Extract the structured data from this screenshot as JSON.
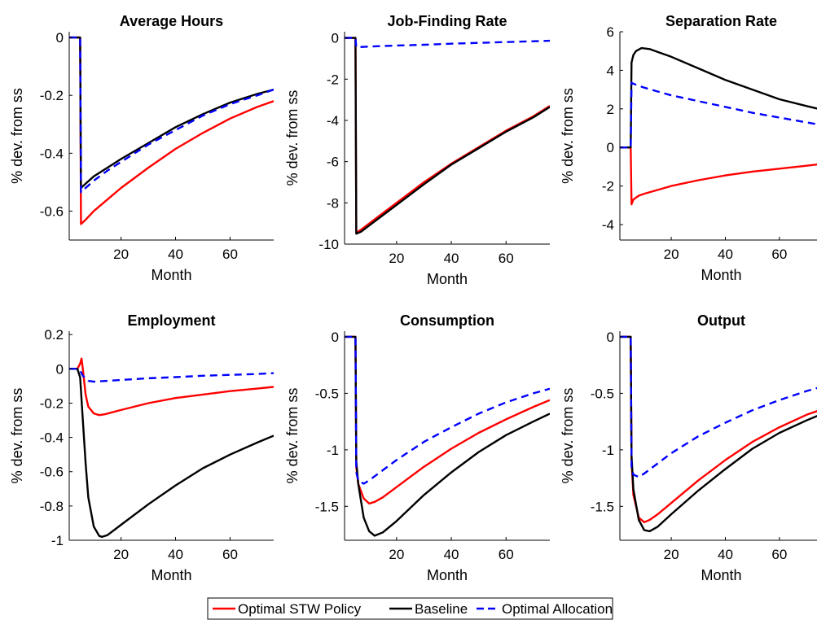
{
  "chart_data": [
    {
      "type": "line",
      "title": "Average Hours",
      "xlabel": "Month",
      "ylabel": "% dev. from ss",
      "xlim": [
        1,
        76
      ],
      "ylim": [
        -0.7,
        0.02
      ],
      "xticks": [
        20,
        40,
        60
      ],
      "yticks": [
        0,
        -0.2,
        -0.4,
        -0.6
      ],
      "yticklabels": [
        "0",
        "-0.2",
        "-0.4",
        "-0.6"
      ],
      "grid": false,
      "series": [
        {
          "name": "Optimal STW Policy",
          "color": "#ff0000",
          "style": "solid",
          "x": [
            1,
            4,
            5,
            5.3,
            7,
            10,
            15,
            20,
            30,
            40,
            50,
            60,
            70,
            76
          ],
          "y": [
            0,
            0,
            0,
            -0.645,
            -0.63,
            -0.6,
            -0.56,
            -0.52,
            -0.45,
            -0.385,
            -0.33,
            -0.28,
            -0.24,
            -0.22
          ]
        },
        {
          "name": "Baseline",
          "color": "#000000",
          "style": "solid",
          "x": [
            1,
            4,
            5,
            5.3,
            7,
            10,
            15,
            20,
            30,
            40,
            50,
            60,
            70,
            76
          ],
          "y": [
            0,
            0,
            0,
            -0.52,
            -0.505,
            -0.48,
            -0.45,
            -0.42,
            -0.365,
            -0.31,
            -0.265,
            -0.225,
            -0.195,
            -0.18
          ]
        },
        {
          "name": "Optimal Allocation",
          "color": "#0000ff",
          "style": "dashed",
          "x": [
            1,
            4,
            5,
            5.3,
            7,
            10,
            15,
            20,
            30,
            40,
            50,
            60,
            70,
            76
          ],
          "y": [
            0,
            0,
            0,
            -0.535,
            -0.52,
            -0.495,
            -0.46,
            -0.43,
            -0.37,
            -0.32,
            -0.27,
            -0.23,
            -0.2,
            -0.18
          ]
        }
      ]
    },
    {
      "type": "line",
      "title": "Job-Finding Rate",
      "xlabel": "Month",
      "ylabel": "% dev. from ss",
      "xlim": [
        1,
        76
      ],
      "ylim": [
        -10,
        0.3
      ],
      "xticks": [
        20,
        40,
        60
      ],
      "yticks": [
        0,
        -2,
        -4,
        -6,
        -8,
        -10
      ],
      "yticklabels": [
        "0",
        "-2",
        "-4",
        "-6",
        "-8",
        "-10"
      ],
      "grid": false,
      "series": [
        {
          "name": "Optimal STW Policy",
          "color": "#ff0000",
          "style": "solid",
          "x": [
            1,
            4,
            5,
            5.3,
            7,
            10,
            15,
            20,
            30,
            40,
            50,
            60,
            70,
            76
          ],
          "y": [
            0,
            0,
            0,
            -9.45,
            -9.3,
            -9.0,
            -8.5,
            -8.0,
            -7.0,
            -6.1,
            -5.3,
            -4.5,
            -3.8,
            -3.3
          ]
        },
        {
          "name": "Baseline",
          "color": "#000000",
          "style": "solid",
          "x": [
            1,
            4,
            5,
            5.3,
            7,
            10,
            15,
            20,
            30,
            40,
            50,
            60,
            70,
            76
          ],
          "y": [
            0,
            0,
            0,
            -9.5,
            -9.4,
            -9.1,
            -8.6,
            -8.1,
            -7.1,
            -6.15,
            -5.35,
            -4.55,
            -3.85,
            -3.35
          ]
        },
        {
          "name": "Optimal Allocation",
          "color": "#0000ff",
          "style": "dashed",
          "x": [
            1,
            4,
            5,
            5.3,
            10,
            20,
            30,
            40,
            50,
            60,
            70,
            76
          ],
          "y": [
            0,
            0,
            0,
            -0.45,
            -0.42,
            -0.37,
            -0.33,
            -0.28,
            -0.24,
            -0.2,
            -0.16,
            -0.14
          ]
        }
      ]
    },
    {
      "type": "line",
      "title": "Separation Rate",
      "xlabel": "Month",
      "ylabel": "% dev. from ss",
      "xlim": [
        1,
        76
      ],
      "ylim": [
        -4.8,
        6
      ],
      "xticks": [
        20,
        40,
        60
      ],
      "yticks": [
        6,
        4,
        2,
        0,
        -2,
        -4
      ],
      "yticklabels": [
        "6",
        "4",
        "2",
        "0",
        "-2",
        "-4"
      ],
      "grid": false,
      "series": [
        {
          "name": "Optimal STW Policy",
          "color": "#ff0000",
          "style": "solid",
          "x": [
            1,
            4,
            5,
            5.3,
            6,
            8,
            10,
            15,
            20,
            30,
            40,
            50,
            60,
            70,
            76
          ],
          "y": [
            0,
            0,
            0,
            -2.95,
            -2.7,
            -2.5,
            -2.4,
            -2.2,
            -2.0,
            -1.7,
            -1.45,
            -1.25,
            -1.1,
            -0.95,
            -0.85
          ]
        },
        {
          "name": "Baseline",
          "color": "#000000",
          "style": "solid",
          "x": [
            1,
            4,
            5,
            5.3,
            6,
            7,
            9,
            12,
            15,
            20,
            30,
            40,
            50,
            60,
            70,
            76
          ],
          "y": [
            0,
            0,
            0,
            4.4,
            4.8,
            5.0,
            5.15,
            5.1,
            4.95,
            4.7,
            4.1,
            3.5,
            3.0,
            2.5,
            2.15,
            1.95
          ]
        },
        {
          "name": "Optimal Allocation",
          "color": "#0000ff",
          "style": "dashed",
          "x": [
            1,
            4,
            5,
            5.3,
            7,
            10,
            15,
            20,
            30,
            40,
            50,
            60,
            70,
            76
          ],
          "y": [
            0,
            0,
            0,
            3.35,
            3.25,
            3.1,
            2.9,
            2.7,
            2.4,
            2.1,
            1.8,
            1.55,
            1.3,
            1.15
          ]
        }
      ]
    },
    {
      "type": "line",
      "title": "Employment",
      "xlabel": "Month",
      "ylabel": "% dev. from ss",
      "xlim": [
        1,
        76
      ],
      "ylim": [
        -1,
        0.22
      ],
      "xticks": [
        20,
        40,
        60
      ],
      "yticks": [
        0.2,
        0,
        -0.2,
        -0.4,
        -0.6,
        -0.8,
        -1
      ],
      "yticklabels": [
        "0.2",
        "0",
        "-0.2",
        "-0.4",
        "-0.6",
        "-0.8",
        "-1"
      ],
      "grid": false,
      "series": [
        {
          "name": "Optimal STW Policy",
          "color": "#ff0000",
          "style": "solid",
          "x": [
            1,
            4,
            5,
            5.5,
            6,
            7,
            8,
            10,
            12,
            14,
            20,
            30,
            40,
            50,
            60,
            70,
            76
          ],
          "y": [
            0,
            0,
            0.03,
            0.06,
            0.0,
            -0.15,
            -0.22,
            -0.26,
            -0.27,
            -0.265,
            -0.24,
            -0.2,
            -0.17,
            -0.15,
            -0.13,
            -0.115,
            -0.105
          ]
        },
        {
          "name": "Baseline",
          "color": "#000000",
          "style": "solid",
          "x": [
            1,
            4,
            5,
            6,
            7,
            8,
            10,
            12,
            13,
            15,
            20,
            30,
            40,
            50,
            60,
            70,
            76
          ],
          "y": [
            0,
            0,
            -0.05,
            -0.3,
            -0.55,
            -0.75,
            -0.92,
            -0.975,
            -0.98,
            -0.97,
            -0.91,
            -0.79,
            -0.68,
            -0.58,
            -0.5,
            -0.43,
            -0.39
          ]
        },
        {
          "name": "Optimal Allocation",
          "color": "#0000ff",
          "style": "dashed",
          "x": [
            1,
            4,
            5,
            6,
            8,
            10,
            20,
            30,
            40,
            50,
            60,
            70,
            76
          ],
          "y": [
            0,
            0,
            -0.01,
            -0.04,
            -0.07,
            -0.075,
            -0.065,
            -0.055,
            -0.048,
            -0.04,
            -0.035,
            -0.03,
            -0.025
          ]
        }
      ]
    },
    {
      "type": "line",
      "title": "Consumption",
      "xlabel": "Month",
      "ylabel": "% dev. from ss",
      "xlim": [
        1,
        76
      ],
      "ylim": [
        -1.8,
        0.05
      ],
      "xticks": [
        20,
        40,
        60
      ],
      "yticks": [
        0,
        -0.5,
        -1,
        -1.5
      ],
      "yticklabels": [
        "0",
        "-0.5",
        "-1",
        "-1.5"
      ],
      "grid": false,
      "series": [
        {
          "name": "Optimal STW Policy",
          "color": "#ff0000",
          "style": "solid",
          "x": [
            1,
            4,
            5,
            5.3,
            6,
            8,
            10,
            12,
            15,
            20,
            30,
            40,
            50,
            60,
            70,
            76
          ],
          "y": [
            0,
            0,
            0,
            -1.15,
            -1.3,
            -1.43,
            -1.475,
            -1.46,
            -1.42,
            -1.33,
            -1.15,
            -0.99,
            -0.85,
            -0.73,
            -0.62,
            -0.56
          ]
        },
        {
          "name": "Baseline",
          "color": "#000000",
          "style": "solid",
          "x": [
            1,
            4,
            5,
            5.3,
            6,
            8,
            10,
            12,
            15,
            20,
            30,
            40,
            50,
            60,
            70,
            76
          ],
          "y": [
            0,
            0,
            0,
            -1.1,
            -1.3,
            -1.6,
            -1.72,
            -1.76,
            -1.73,
            -1.63,
            -1.4,
            -1.2,
            -1.02,
            -0.87,
            -0.75,
            -0.68
          ]
        },
        {
          "name": "Optimal Allocation",
          "color": "#0000ff",
          "style": "dashed",
          "x": [
            1,
            4,
            5,
            5.3,
            6,
            8,
            10,
            15,
            20,
            30,
            40,
            50,
            60,
            70,
            76
          ],
          "y": [
            0,
            0,
            0,
            -1.2,
            -1.27,
            -1.3,
            -1.27,
            -1.18,
            -1.09,
            -0.93,
            -0.8,
            -0.68,
            -0.58,
            -0.5,
            -0.46
          ]
        }
      ]
    },
    {
      "type": "line",
      "title": "Output",
      "xlabel": "Month",
      "ylabel": "% dev. from ss",
      "xlim": [
        1,
        76
      ],
      "ylim": [
        -1.8,
        0.05
      ],
      "xticks": [
        20,
        40,
        60
      ],
      "yticks": [
        0,
        -0.5,
        -1,
        -1.5
      ],
      "yticklabels": [
        "0",
        "-0.5",
        "-1",
        "-1.5"
      ],
      "grid": false,
      "series": [
        {
          "name": "Optimal STW Policy",
          "color": "#ff0000",
          "style": "solid",
          "x": [
            1,
            4,
            5,
            5.3,
            6,
            8,
            10,
            12,
            15,
            20,
            30,
            40,
            50,
            60,
            70,
            76
          ],
          "y": [
            0,
            0,
            0,
            -1.1,
            -1.4,
            -1.6,
            -1.64,
            -1.62,
            -1.57,
            -1.47,
            -1.27,
            -1.09,
            -0.93,
            -0.8,
            -0.69,
            -0.64
          ]
        },
        {
          "name": "Baseline",
          "color": "#000000",
          "style": "solid",
          "x": [
            1,
            4,
            5,
            5.3,
            6,
            8,
            10,
            12,
            15,
            20,
            30,
            40,
            50,
            60,
            70,
            76
          ],
          "y": [
            0,
            0,
            0,
            -1.05,
            -1.35,
            -1.62,
            -1.71,
            -1.72,
            -1.68,
            -1.57,
            -1.36,
            -1.17,
            -0.99,
            -0.85,
            -0.74,
            -0.68
          ]
        },
        {
          "name": "Optimal Allocation",
          "color": "#0000ff",
          "style": "dashed",
          "x": [
            1,
            4,
            5,
            5.3,
            6,
            8,
            10,
            15,
            20,
            30,
            40,
            50,
            60,
            70,
            76
          ],
          "y": [
            0,
            0,
            0,
            -1.15,
            -1.22,
            -1.24,
            -1.21,
            -1.12,
            -1.03,
            -0.88,
            -0.76,
            -0.65,
            -0.56,
            -0.48,
            -0.44
          ]
        }
      ]
    }
  ],
  "legend": {
    "placement": "bottom-center",
    "entries": [
      {
        "label": "Optimal STW Policy",
        "color": "#ff0000",
        "style": "solid"
      },
      {
        "label": "Baseline",
        "color": "#000000",
        "style": "solid"
      },
      {
        "label": "Optimal Allocation",
        "color": "#0000ff",
        "style": "dashed"
      }
    ]
  }
}
